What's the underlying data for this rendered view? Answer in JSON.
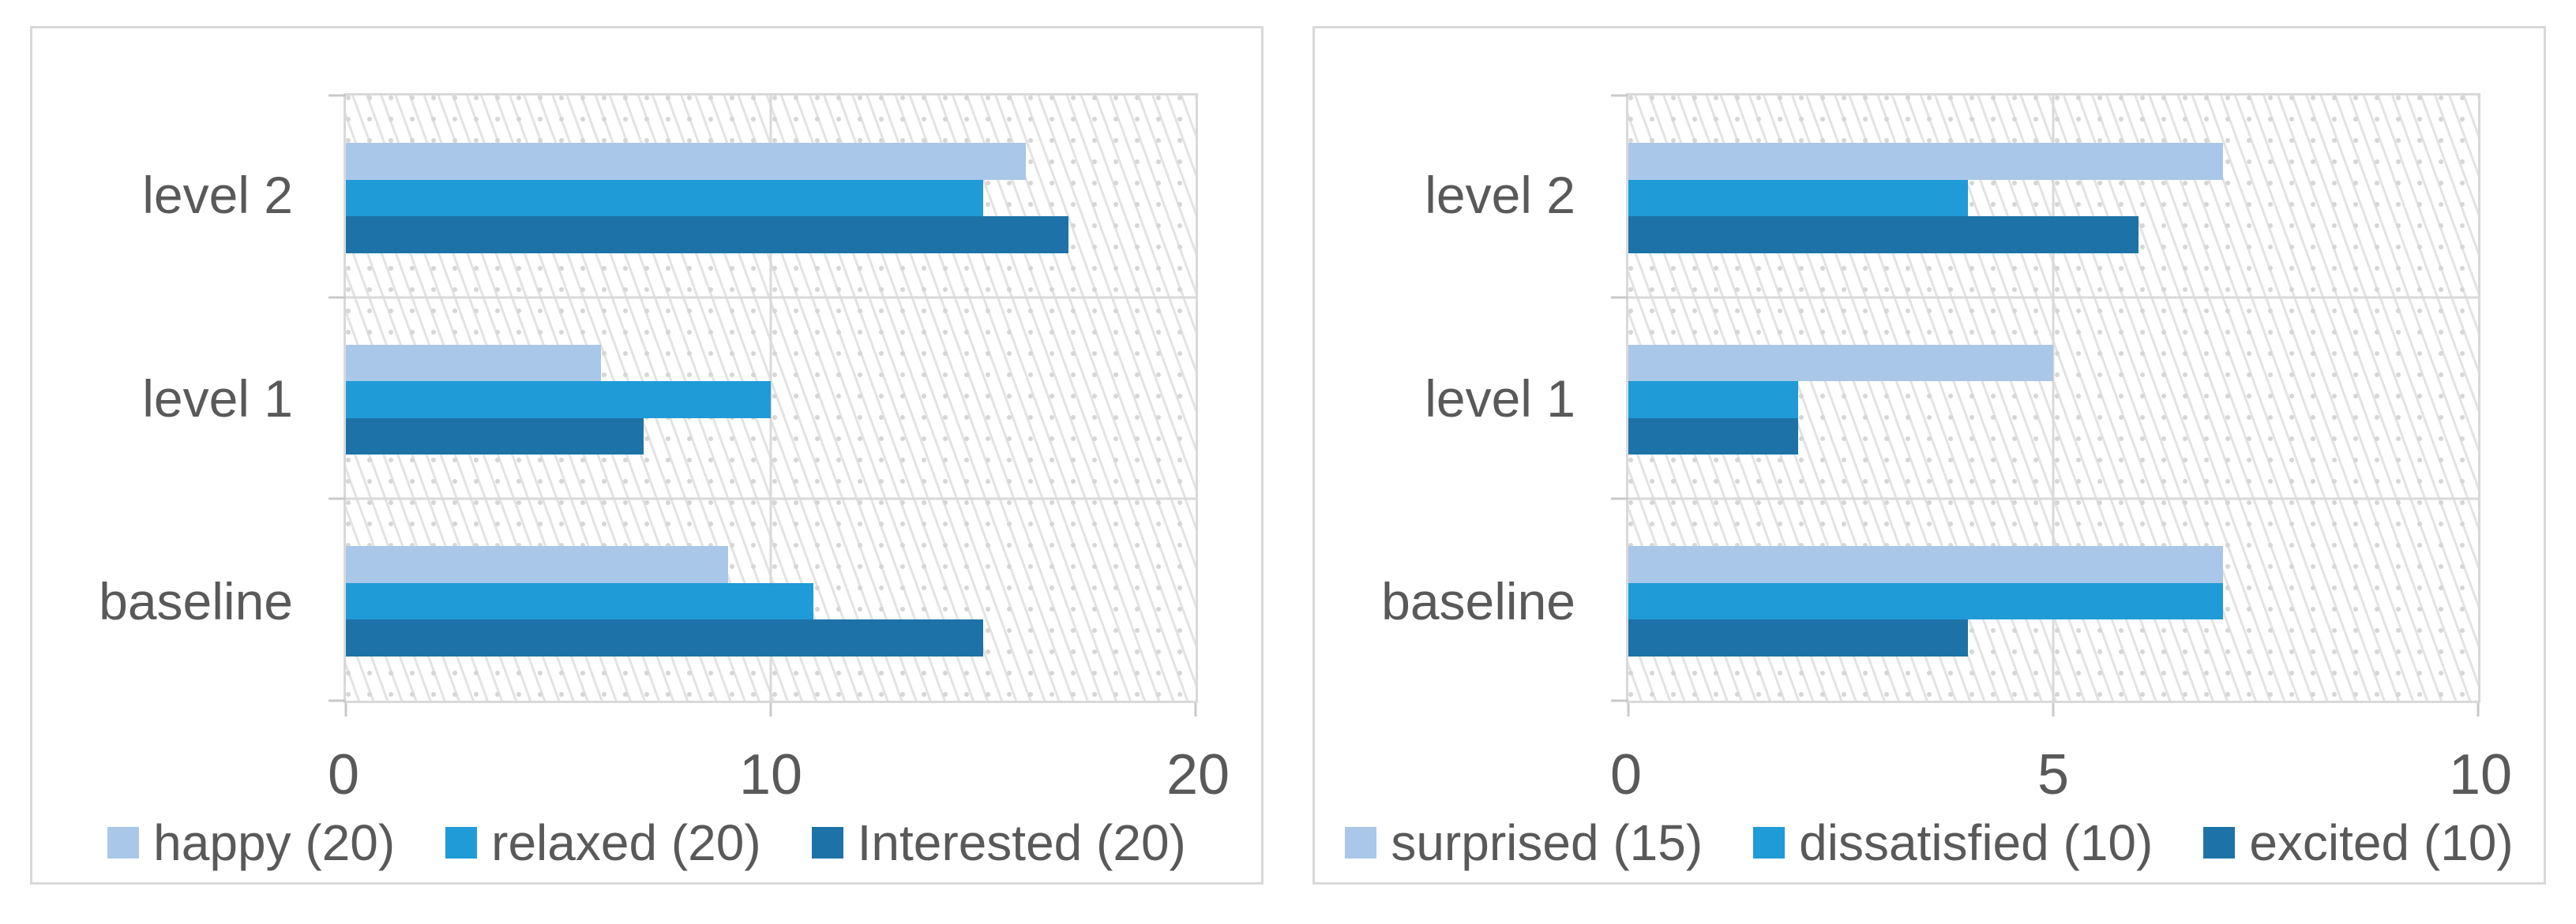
{
  "page": {
    "background": "#ffffff"
  },
  "colors": {
    "series": [
      "#a9c7e8",
      "#1f9bd8",
      "#1d73a7"
    ],
    "grid": "#d9d9d9",
    "panel_border": "#d9d9d9",
    "text": "#595959",
    "hatch_line": "#e3e3e3",
    "hatch_dot": "#d6d6d6"
  },
  "chart_data": [
    {
      "type": "bar",
      "orientation": "horizontal",
      "title": "",
      "categories": [
        "level 2",
        "level 1",
        "baseline"
      ],
      "series": [
        {
          "name": "happy (20)",
          "values": [
            16,
            6,
            9
          ]
        },
        {
          "name": "relaxed (20)",
          "values": [
            15,
            10,
            11
          ]
        },
        {
          "name": "Interested (20)",
          "values": [
            17,
            7,
            15
          ]
        }
      ],
      "xlim": [
        0,
        20
      ],
      "xticks": [
        "0",
        "10",
        "20"
      ],
      "grid": true,
      "legend_position": "bottom",
      "plot_background": "diagonal-hatch"
    },
    {
      "type": "bar",
      "orientation": "horizontal",
      "title": "",
      "categories": [
        "level 2",
        "level 1",
        "baseline"
      ],
      "series": [
        {
          "name": "surprised (15)",
          "values": [
            7,
            5,
            7
          ]
        },
        {
          "name": "dissatisfied (10)",
          "values": [
            4,
            2,
            7
          ]
        },
        {
          "name": "excited (10)",
          "values": [
            6,
            2,
            4
          ]
        }
      ],
      "xlim": [
        0,
        10
      ],
      "xticks": [
        "0",
        "5",
        "10"
      ],
      "grid": true,
      "legend_position": "bottom",
      "plot_background": "diagonal-hatch"
    }
  ]
}
